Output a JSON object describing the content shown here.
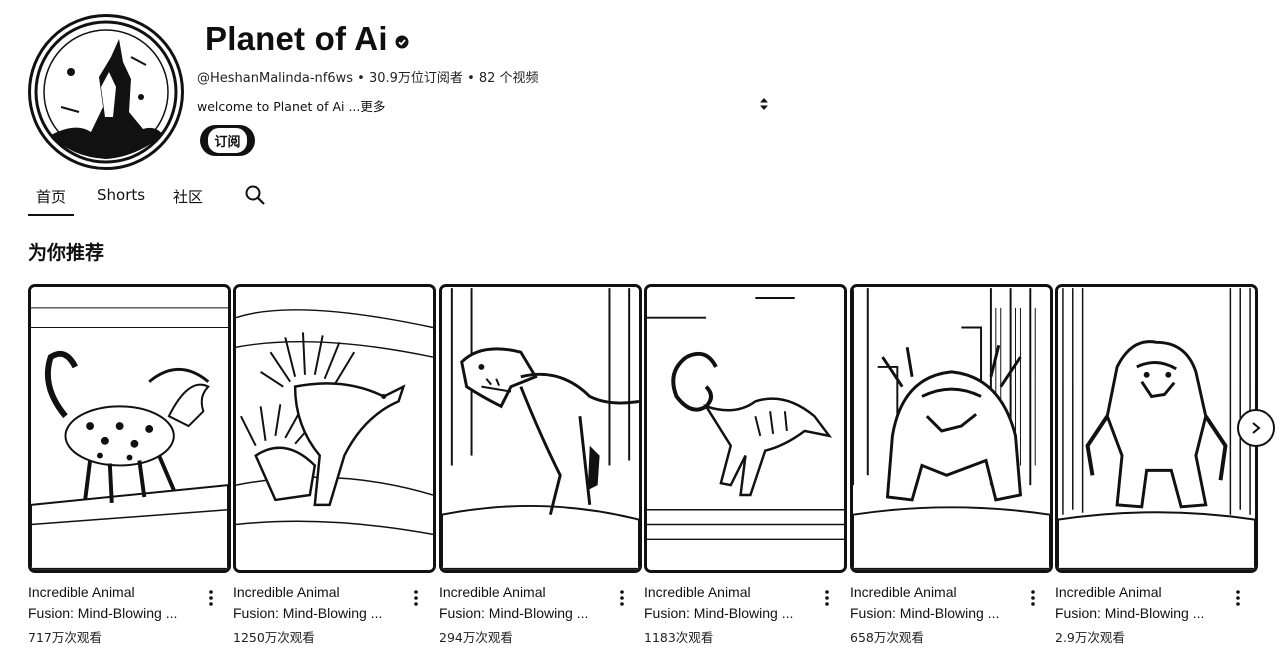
{
  "channel": {
    "name": "Planet of Ai",
    "handle": "@HeshanMalinda-nf6ws",
    "subscribers": "30.9万位订阅者",
    "videos": "82 个视频",
    "meta_separator": " • ",
    "description": "welcome to Planet of Ai ...",
    "more_label": "更多",
    "subscribe_label": "订阅",
    "avatar_icon": "howling-wolf-avatar"
  },
  "tabs": [
    {
      "label": "首页",
      "active": true
    },
    {
      "label": "Shorts",
      "active": false
    },
    {
      "label": "社区",
      "active": false
    }
  ],
  "section": {
    "title": "为你推荐"
  },
  "videos": [
    {
      "title_line1": "Incredible Animal",
      "title_line2": "Fusion: Mind-Blowing ...",
      "views": "717万次观看",
      "thumb_icon": "leopard-horse-fusion"
    },
    {
      "title_line1": "Incredible Animal",
      "title_line2": "Fusion: Mind-Blowing ...",
      "views": "1250万次观看",
      "thumb_icon": "porcupine-fusion"
    },
    {
      "title_line1": "Incredible Animal",
      "title_line2": "Fusion: Mind-Blowing ...",
      "views": "294万次观看",
      "thumb_icon": "t-rex-fusion"
    },
    {
      "title_line1": "Incredible Animal",
      "title_line2": "Fusion: Mind-Blowing ...",
      "views": "1183次观看",
      "thumb_icon": "dinosaur-fusion"
    },
    {
      "title_line1": "Incredible Animal",
      "title_line2": "Fusion: Mind-Blowing ...",
      "views": "658万次观看",
      "thumb_icon": "city-monster-fusion"
    },
    {
      "title_line1": "Incredible Animal",
      "title_line2": "Fusion: Mind-Blowing ...",
      "views": "2.9万次观看",
      "thumb_icon": "gorilla-monster-fusion"
    }
  ],
  "colors": {
    "text": "#0f0f0f",
    "border": "#111111",
    "background": "#ffffff"
  }
}
